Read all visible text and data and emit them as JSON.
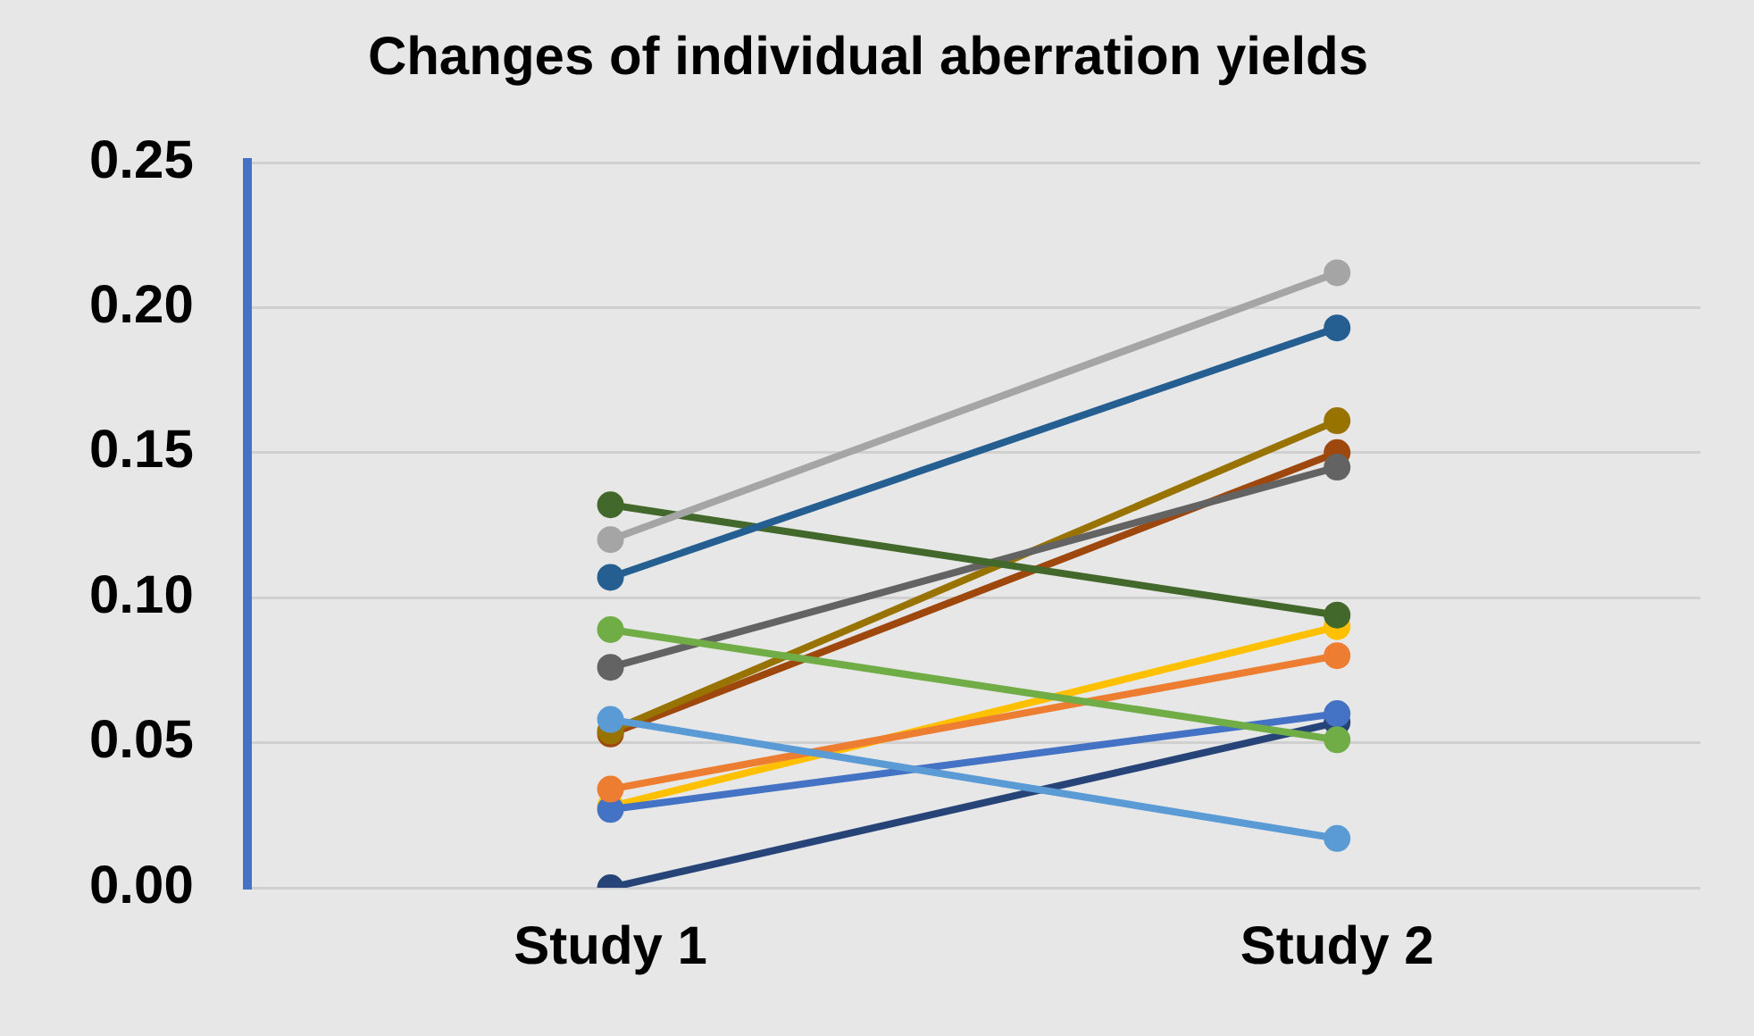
{
  "chart_data": {
    "type": "line",
    "title": "Changes of individual aberration yields",
    "categories": [
      "Study 1",
      "Study 2"
    ],
    "series": [
      {
        "color": "#a5a5a5",
        "values": [
          0.12,
          0.212
        ]
      },
      {
        "color": "#255e91",
        "values": [
          0.107,
          0.193
        ]
      },
      {
        "color": "#43682b",
        "values": [
          0.132,
          0.094
        ]
      },
      {
        "color": "#70ad47",
        "values": [
          0.089,
          0.051
        ]
      },
      {
        "color": "#636363",
        "values": [
          0.076,
          0.145
        ]
      },
      {
        "color": "#5b9bd5",
        "values": [
          0.058,
          0.017
        ]
      },
      {
        "color": "#997300",
        "values": [
          0.054,
          0.161
        ]
      },
      {
        "color": "#9e480e",
        "values": [
          0.053,
          0.15
        ]
      },
      {
        "color": "#ed7d31",
        "values": [
          0.034,
          0.08
        ]
      },
      {
        "color": "#4472c4",
        "values": [
          0.027,
          0.06
        ]
      },
      {
        "color": "#ffc000",
        "values": [
          0.028,
          0.09
        ]
      },
      {
        "color": "#264478",
        "values": [
          0.0,
          0.057
        ]
      }
    ],
    "ylim": [
      0,
      0.25
    ],
    "yticks": [
      {
        "value": 0,
        "label": "0.00"
      },
      {
        "value": 0.05,
        "label": "0.05"
      },
      {
        "value": 0.1,
        "label": "0.10"
      },
      {
        "value": 0.15,
        "label": "0.15"
      },
      {
        "value": 0.2,
        "label": "0.20"
      },
      {
        "value": 0.25,
        "label": "0.25"
      }
    ],
    "grid": "y",
    "legend": false,
    "marker": "circle",
    "line_style": "solid"
  }
}
